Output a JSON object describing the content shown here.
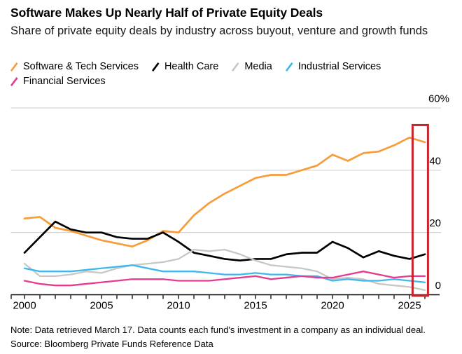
{
  "header": {
    "title": "Software Makes Up Nearly Half of Private Equity Deals",
    "subtitle": "Share of private equity deals by industry across buyout, venture and growth funds"
  },
  "chart_data": {
    "type": "line",
    "x_start_year": 2000,
    "x_end_year": 2026,
    "x_tick_label_years": [
      2000,
      2005,
      2010,
      2015,
      2020,
      2025
    ],
    "ylim": [
      0,
      60
    ],
    "grid": true,
    "legend_position": "top",
    "y_ticks": [
      {
        "value": 60,
        "label": "60%"
      },
      {
        "value": 40,
        "label": "40"
      },
      {
        "value": 20,
        "label": "20"
      },
      {
        "value": 0,
        "label": "0"
      }
    ],
    "series": [
      {
        "name": "Software & Tech Services",
        "color": "#F79C38",
        "values": [
          24.5,
          25,
          21.5,
          20.5,
          19,
          17.5,
          16.5,
          15.5,
          17.5,
          20.5,
          20,
          25.5,
          29.5,
          32.5,
          35,
          37.5,
          38.5,
          38.5,
          40,
          41.5,
          45,
          43,
          45.5,
          46,
          48,
          50.5,
          49
        ]
      },
      {
        "name": "Health Care",
        "color": "#000000",
        "values": [
          13.5,
          18.5,
          23.5,
          21,
          20,
          20,
          18.5,
          18,
          18,
          20,
          17,
          13.5,
          12.5,
          11.5,
          11,
          11.5,
          11.5,
          13,
          13.5,
          13.5,
          17,
          15,
          12,
          14,
          12.5,
          11.5,
          13
        ]
      },
      {
        "name": "Media",
        "color": "#C7C7C7",
        "values": [
          10,
          6,
          6,
          6.5,
          7.5,
          7,
          8.5,
          9.5,
          10,
          10.5,
          11.5,
          14.5,
          14,
          14.5,
          13,
          11,
          9.5,
          9,
          8.5,
          7.5,
          5,
          5.5,
          5,
          3.5,
          3,
          2.5,
          1.5
        ]
      },
      {
        "name": "Industrial Services",
        "color": "#3EB8EB",
        "values": [
          8.5,
          7.5,
          7.5,
          7.5,
          8,
          8.5,
          9,
          9.5,
          8.5,
          7.5,
          7.5,
          7.5,
          7,
          6.5,
          6.5,
          7,
          6.5,
          6.5,
          6,
          6,
          4.5,
          5,
          4.5,
          4.5,
          5,
          4.5,
          4
        ]
      },
      {
        "name": "Financial Services",
        "color": "#E53A8E",
        "values": [
          4.5,
          3.5,
          3,
          3,
          3.5,
          4,
          4.5,
          5,
          5,
          5,
          4.5,
          4.5,
          4.5,
          5,
          5.5,
          6,
          5,
          5.5,
          6,
          5.5,
          5.5,
          6.5,
          7.5,
          6.5,
          5.5,
          6,
          6
        ]
      }
    ],
    "annotation": {
      "type": "highlight-rect",
      "x_from": 2025.2,
      "x_to": 2026.2,
      "y_top": 54.5,
      "y_bottom": -0.3,
      "color": "#C7252B"
    },
    "colors": {
      "gridline": "#CCCCCC",
      "axis": "#000000"
    }
  },
  "footer": {
    "note": "Note: Data retrieved March 17. Data counts each fund's investment in a company as an individual deal.",
    "source": "Source: Bloomberg Private Funds Reference Data"
  }
}
